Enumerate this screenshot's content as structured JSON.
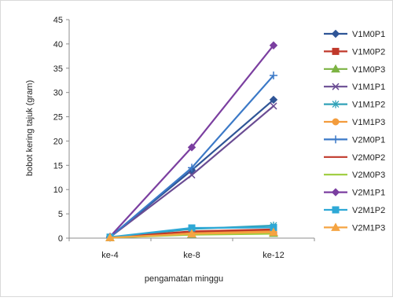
{
  "chart_data": {
    "type": "line",
    "title": "",
    "xlabel": "pengamatan minggu",
    "ylabel": "bobot kering tajuk (gram)",
    "categories": [
      "ke-4",
      "ke-8",
      "ke-12"
    ],
    "ylim": [
      0,
      45
    ],
    "yticks": [
      0,
      5,
      10,
      15,
      20,
      25,
      30,
      35,
      40,
      45
    ],
    "grid": false,
    "legend_position": "right",
    "series": [
      {
        "name": "V1M0P1",
        "values": [
          0.2,
          14.0,
          28.5
        ],
        "color": "#2f5597",
        "marker": "diamond"
      },
      {
        "name": "V1M0P2",
        "values": [
          0.1,
          1.3,
          1.6
        ],
        "color": "#c0392b",
        "marker": "square"
      },
      {
        "name": "V1M0P3",
        "values": [
          0.1,
          0.8,
          1.0
        ],
        "color": "#7cb342",
        "marker": "triangle"
      },
      {
        "name": "V1M1P1",
        "values": [
          0.2,
          13.0,
          27.2
        ],
        "color": "#6a4c93",
        "marker": "x"
      },
      {
        "name": "V1M1P2",
        "values": [
          0.1,
          1.9,
          2.6
        ],
        "color": "#31a2b8",
        "marker": "star"
      },
      {
        "name": "V1M1P3",
        "values": [
          0.1,
          1.0,
          1.4
        ],
        "color": "#f39c3d",
        "marker": "circle"
      },
      {
        "name": "V2M0P1",
        "values": [
          0.2,
          14.5,
          33.5
        ],
        "color": "#3b79c7",
        "marker": "plus"
      },
      {
        "name": "V2M0P2",
        "values": [
          0.1,
          1.4,
          1.8
        ],
        "color": "#c0392b",
        "marker": "none"
      },
      {
        "name": "V2M0P3",
        "values": [
          0.1,
          0.7,
          0.9
        ],
        "color": "#9ccc3a",
        "marker": "none"
      },
      {
        "name": "V2M1P1",
        "values": [
          0.3,
          18.7,
          39.7
        ],
        "color": "#7b3fa0",
        "marker": "diamond"
      },
      {
        "name": "V2M1P2",
        "values": [
          0.2,
          2.1,
          2.2
        ],
        "color": "#2ea8d6",
        "marker": "square"
      },
      {
        "name": "V2M1P3",
        "values": [
          0.1,
          0.9,
          1.2
        ],
        "color": "#f5a442",
        "marker": "triangle"
      }
    ]
  }
}
